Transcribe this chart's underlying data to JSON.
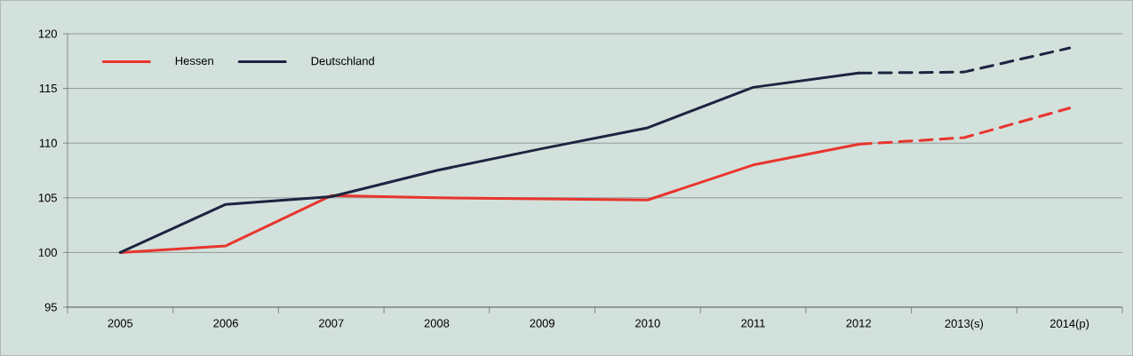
{
  "chart_data": {
    "type": "line",
    "categories": [
      "2005",
      "2006",
      "2007",
      "2008",
      "2009",
      "2010",
      "2011",
      "2012",
      "2013(s)",
      "2014(p)"
    ],
    "series": [
      {
        "name": "Hessen",
        "color": "#e8352e",
        "values": [
          100,
          100.6,
          105.2,
          105.0,
          104.9,
          104.8,
          108.0,
          109.9,
          null,
          null
        ]
      },
      {
        "name": "Deutschland",
        "color": "#1b2440",
        "values": [
          100,
          104.4,
          105.1,
          107.5,
          109.5,
          111.4,
          115.1,
          116.4,
          null,
          null
        ]
      },
      {
        "color": "#e8352e",
        "line_style": "dashed",
        "values": [
          null,
          null,
          null,
          null,
          null,
          null,
          null,
          109.9,
          110.5,
          113.2
        ]
      },
      {
        "color": "#1b2440",
        "line_style": "dashed",
        "values": [
          null,
          null,
          null,
          null,
          null,
          null,
          null,
          116.4,
          116.5,
          118.7
        ]
      }
    ],
    "ylim": [
      95,
      120
    ],
    "yticks": [
      95,
      100,
      105,
      110,
      115,
      120
    ],
    "grid": "y",
    "legend": "top left",
    "line_style": "solid",
    "marker": "none"
  }
}
